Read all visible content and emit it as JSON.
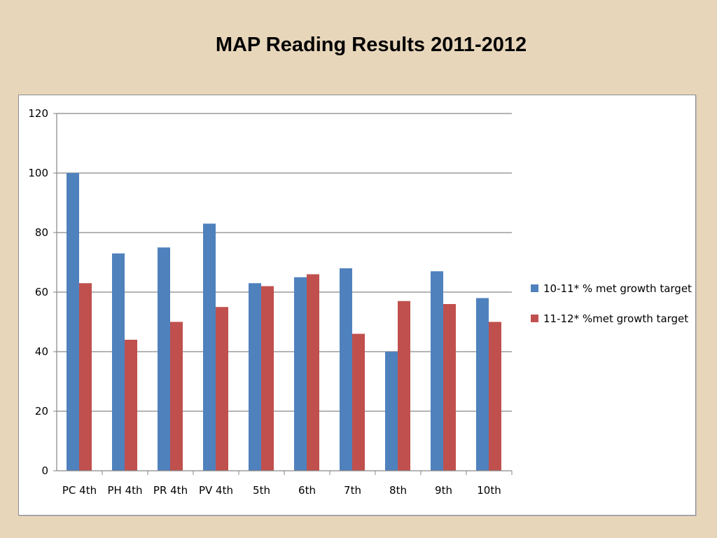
{
  "slide": {
    "title": "MAP Reading Results 2011-2012"
  },
  "chart_data": {
    "type": "bar",
    "title": "",
    "xlabel": "",
    "ylabel": "",
    "ylim": [
      0,
      120
    ],
    "yticks": [
      0,
      20,
      40,
      60,
      80,
      100,
      120
    ],
    "grid": true,
    "legend_position": "right",
    "categories": [
      "PC 4th",
      "PH 4th",
      "PR 4th",
      "PV 4th",
      "5th",
      "6th",
      "7th",
      "8th",
      "9th",
      "10th"
    ],
    "series": [
      {
        "name": "10-11* % met growth target",
        "color": "#4f81bd",
        "values": [
          100,
          73,
          75,
          83,
          63,
          65,
          68,
          40,
          67,
          58
        ]
      },
      {
        "name": "11-12* %met growth target",
        "color": "#c0504d",
        "values": [
          63,
          44,
          50,
          55,
          62,
          66,
          46,
          57,
          56,
          50
        ]
      }
    ]
  }
}
